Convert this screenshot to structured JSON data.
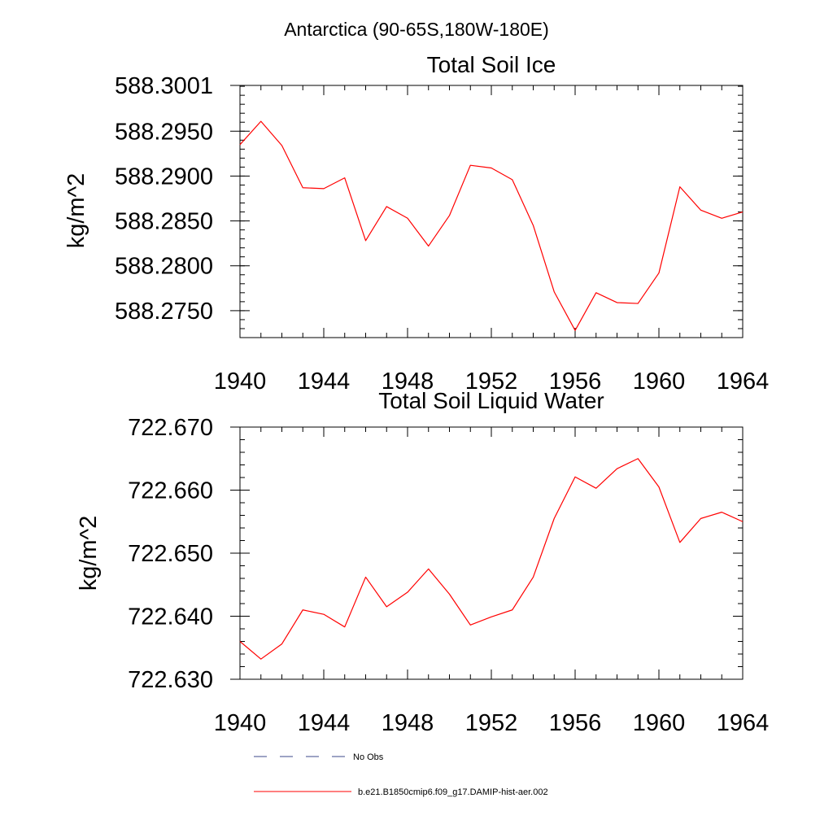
{
  "figure": {
    "suptitle": "Antarctica (90-65S,180W-180E)"
  },
  "chart_data": [
    {
      "type": "line",
      "title": "Total Soil Ice",
      "xlabel": "",
      "ylabel": "kg/m^2",
      "xlim": [
        1940,
        1964
      ],
      "ylim": [
        588.272,
        588.3001
      ],
      "xticks": [
        1940,
        1944,
        1948,
        1952,
        1956,
        1960,
        1964
      ],
      "xtick_labels": [
        "1940",
        "1944",
        "1948",
        "1952",
        "1956",
        "1960",
        "1964"
      ],
      "yticks": [
        588.3001,
        588.295,
        588.29,
        588.285,
        588.28,
        588.275
      ],
      "ytick_labels": [
        "588.3001",
        "588.2950",
        "588.2900",
        "588.2850",
        "588.2800",
        "588.2750"
      ],
      "grid": false,
      "series": [
        {
          "name": "b.e21.B1850cmip6.f09_g17.DAMIP-hist-aer.002",
          "color": "#ff0000",
          "x": [
            1940,
            1941,
            1942,
            1943,
            1944,
            1945,
            1946,
            1947,
            1948,
            1949,
            1950,
            1951,
            1952,
            1953,
            1954,
            1955,
            1956,
            1957,
            1958,
            1959,
            1960,
            1961,
            1962,
            1963,
            1964
          ],
          "y": [
            588.2935,
            588.2961,
            588.2934,
            588.2887,
            588.2886,
            588.2898,
            588.2828,
            588.2866,
            588.2853,
            588.2822,
            588.2856,
            588.2912,
            588.2909,
            588.2896,
            588.2845,
            588.2771,
            588.2728,
            588.277,
            588.2759,
            588.2758,
            588.2792,
            588.2888,
            588.2862,
            588.2853,
            588.286
          ]
        }
      ]
    },
    {
      "type": "line",
      "title": "Total Soil Liquid Water",
      "xlabel": "",
      "ylabel": "kg/m^2",
      "xlim": [
        1940,
        1964
      ],
      "ylim": [
        722.63,
        722.67
      ],
      "xticks": [
        1940,
        1944,
        1948,
        1952,
        1956,
        1960,
        1964
      ],
      "xtick_labels": [
        "1940",
        "1944",
        "1948",
        "1952",
        "1956",
        "1960",
        "1964"
      ],
      "yticks": [
        722.67,
        722.66,
        722.65,
        722.64,
        722.63
      ],
      "ytick_labels": [
        "722.670",
        "722.660",
        "722.650",
        "722.640",
        "722.630"
      ],
      "grid": false,
      "series": [
        {
          "name": "b.e21.B1850cmip6.f09_g17.DAMIP-hist-aer.002",
          "color": "#ff0000",
          "x": [
            1940,
            1941,
            1942,
            1943,
            1944,
            1945,
            1946,
            1947,
            1948,
            1949,
            1950,
            1951,
            1952,
            1953,
            1954,
            1955,
            1956,
            1957,
            1958,
            1959,
            1960,
            1961,
            1962,
            1963,
            1964
          ],
          "y": [
            722.636,
            722.6332,
            722.6356,
            722.641,
            722.6403,
            722.6383,
            722.6462,
            722.6415,
            722.6438,
            722.6475,
            722.6435,
            722.6386,
            722.6399,
            722.641,
            722.6462,
            722.6555,
            722.6621,
            722.6603,
            722.6634,
            722.665,
            722.6605,
            722.6517,
            722.6555,
            722.6565,
            722.655
          ]
        }
      ]
    }
  ],
  "legend": {
    "placement": "bottom",
    "entries": [
      {
        "label": "No Obs",
        "color": "#3b4a8a",
        "style": "dashed"
      },
      {
        "label": "b.e21.B1850cmip6.f09_g17.DAMIP-hist-aer.002",
        "color": "#ff0000",
        "style": "solid"
      }
    ]
  }
}
